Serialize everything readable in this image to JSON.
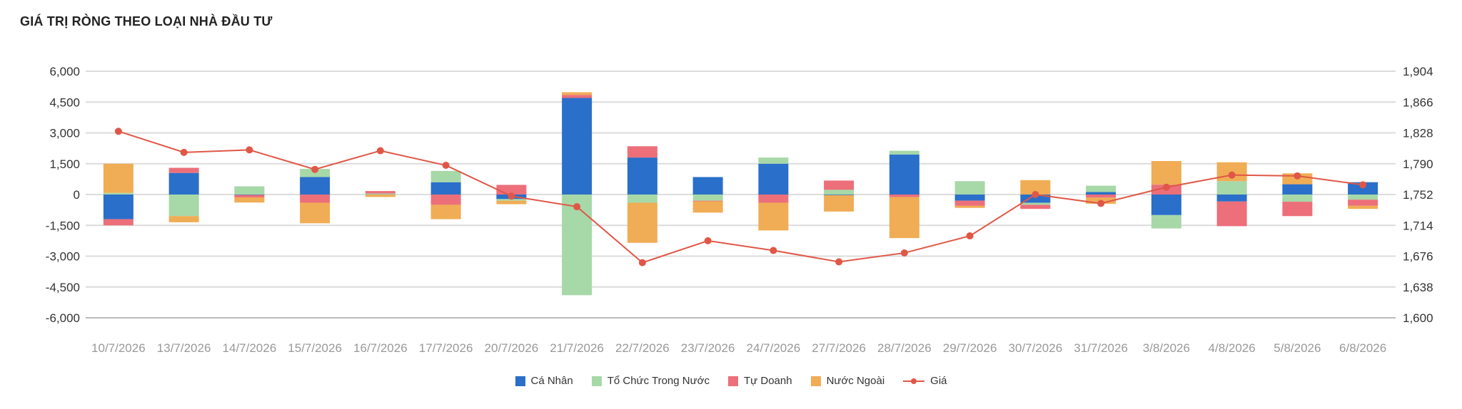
{
  "title": "GIÁ TRỊ RÒNG THEO LOẠI NHÀ ĐẦU TƯ",
  "chart_data": {
    "type": "bar",
    "stacked": true,
    "categories": [
      "10/7/2026",
      "13/7/2026",
      "14/7/2026",
      "15/7/2026",
      "16/7/2026",
      "17/7/2026",
      "20/7/2026",
      "21/7/2026",
      "22/7/2026",
      "23/7/2026",
      "24/7/2026",
      "27/7/2026",
      "28/7/2026",
      "29/7/2026",
      "30/7/2026",
      "31/7/2026",
      "3/8/2026",
      "4/8/2026",
      "5/8/2026",
      "6/8/2026"
    ],
    "series": [
      {
        "name": "Cá Nhân",
        "color": "#2a6fc9",
        "values": [
          -1200,
          1050,
          -20,
          850,
          10,
          600,
          -220,
          4700,
          1800,
          850,
          1500,
          -30,
          1950,
          -300,
          -400,
          120,
          -1000,
          -340,
          500,
          600
        ]
      },
      {
        "name": "Tổ Chức Trong Nước",
        "color": "#a7d8a8",
        "values": [
          80,
          -1050,
          400,
          400,
          40,
          550,
          -80,
          -4900,
          -400,
          -300,
          300,
          230,
          180,
          650,
          -100,
          310,
          -650,
          650,
          -350,
          -250
        ]
      },
      {
        "name": "Tự Doanh",
        "color": "#ec6f7a",
        "values": [
          -300,
          250,
          -120,
          -400,
          120,
          -500,
          470,
          150,
          550,
          -30,
          -400,
          450,
          -120,
          -250,
          -200,
          -150,
          480,
          -1200,
          -700,
          -300
        ]
      },
      {
        "name": "Nước Ngoài",
        "color": "#f0ad55",
        "values": [
          1420,
          -300,
          -250,
          -1000,
          -120,
          -700,
          -170,
          130,
          -1950,
          -550,
          -1350,
          -800,
          -2000,
          -100,
          700,
          -300,
          1150,
          920,
          530,
          -150
        ]
      }
    ],
    "line_series": {
      "name": "Giá",
      "color": "#e05747",
      "axis": "right",
      "values": [
        1830,
        1804,
        1807,
        1783,
        1806,
        1788,
        1750,
        1737,
        1668,
        1695,
        1683,
        1669,
        1680,
        1701,
        1752,
        1741,
        1761,
        1776,
        1775,
        1764
      ]
    },
    "y_left": {
      "min": -6000,
      "max": 6000,
      "ticks": [
        "6,000",
        "4,500",
        "3,000",
        "1,500",
        "0",
        "-1,500",
        "-3,000",
        "-4,500",
        "-6,000"
      ]
    },
    "y_right": {
      "min": 1600,
      "max": 1904,
      "ticks": [
        "1,904",
        "1,866",
        "1,828",
        "1,790",
        "1,752",
        "1,714",
        "1,676",
        "1,638",
        "1,600"
      ]
    },
    "grid": true,
    "legend_position": "bottom"
  }
}
